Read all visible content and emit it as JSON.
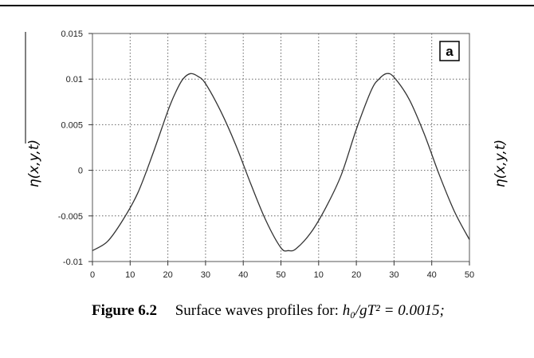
{
  "chart_data": {
    "type": "line",
    "panel_label": "a",
    "ylabel": "η(x,y,t)",
    "xlabel": "",
    "y_ticks": [
      "0.015",
      "0.01",
      "0.005",
      "0",
      "-0.005",
      "-0.01"
    ],
    "y_tick_values": [
      0.015,
      0.01,
      0.005,
      0,
      -0.005,
      -0.01
    ],
    "ylim": [
      -0.01,
      0.015
    ],
    "x_ticks": [
      "0",
      "10",
      "20",
      "30",
      "40",
      "50",
      "10",
      "20",
      "30",
      "40",
      "50"
    ],
    "xlim": [
      0,
      100
    ],
    "grid": true,
    "series": [
      {
        "color": "#333333",
        "x": [
          0,
          4,
          8,
          12,
          16,
          20,
          22,
          24,
          26,
          28,
          30,
          34,
          38,
          42,
          46,
          50,
          52,
          54,
          58,
          62,
          66,
          70,
          74,
          76,
          78,
          80,
          84,
          88,
          92,
          96,
          100
        ],
        "y": [
          -0.0088,
          -0.0078,
          -0.0055,
          -0.0025,
          0.0018,
          0.0065,
          0.0085,
          0.01,
          0.0106,
          0.0103,
          0.0095,
          0.0065,
          0.0028,
          -0.0015,
          -0.0055,
          -0.0085,
          -0.0088,
          -0.0086,
          -0.0068,
          -0.004,
          -0.0005,
          0.0045,
          0.0088,
          0.01,
          0.0106,
          0.0102,
          0.0078,
          0.004,
          -0.0005,
          -0.0045,
          -0.0076
        ]
      }
    ]
  },
  "caption": {
    "label": "Figure 6.2",
    "text_prefix": "Surface waves profiles for: ",
    "formula": "h₀/gT² = 0.0015;"
  },
  "right_partial": {
    "ylabel": "η(x,y,t)"
  }
}
